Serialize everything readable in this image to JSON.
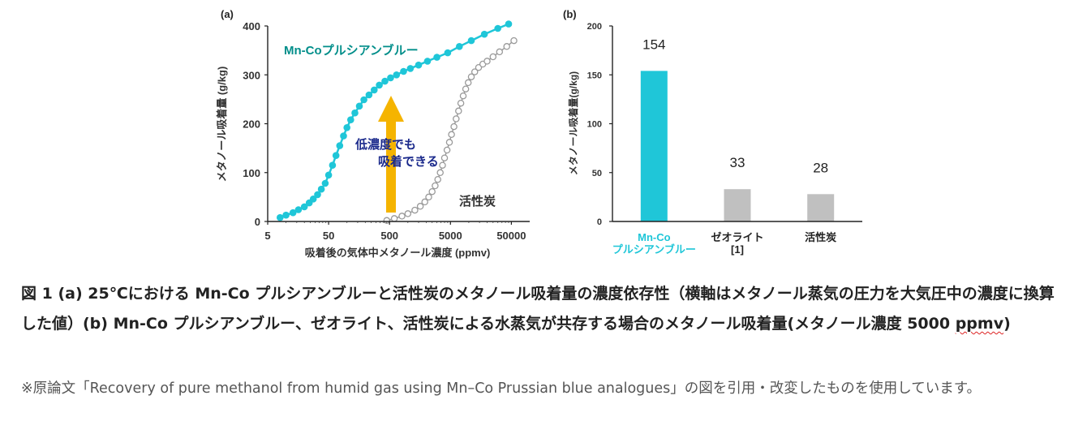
{
  "chart_data": [
    {
      "type": "line",
      "panel_label": "(a)",
      "xlabel": "吸着後の気体中メタノール濃度 (ppmv)",
      "ylabel": "メタノール吸着量 (g/kg)",
      "x_scale": "log",
      "xlim": [
        5,
        100000
      ],
      "ylim": [
        0,
        400
      ],
      "x_ticks": [
        5,
        50,
        500,
        5000,
        50000
      ],
      "x_tick_labels": [
        "5",
        "50",
        "500",
        "5000",
        "50000"
      ],
      "y_ticks": [
        0,
        100,
        200,
        300,
        400
      ],
      "y_tick_labels": [
        "0",
        "100",
        "200",
        "300",
        "400"
      ],
      "series": [
        {
          "name": "Mn-Coプルシアンブルー",
          "color": "#1fc6d8",
          "x": [
            8,
            10,
            13,
            16,
            20,
            24,
            28,
            33,
            38,
            44,
            50,
            58,
            66,
            76,
            88,
            100,
            115,
            135,
            160,
            190,
            230,
            280,
            340,
            420,
            520,
            650,
            850,
            1100,
            1500,
            2100,
            3000,
            4500,
            7000,
            11000,
            18000,
            30000,
            45000
          ],
          "y": [
            8,
            13,
            18,
            24,
            30,
            38,
            46,
            55,
            66,
            78,
            95,
            115,
            135,
            155,
            175,
            192,
            208,
            222,
            236,
            249,
            259,
            269,
            279,
            287,
            294,
            300,
            307,
            313,
            320,
            328,
            336,
            345,
            358,
            370,
            383,
            395,
            404
          ]
        },
        {
          "name": "活性炭",
          "color": "#9a9a9a",
          "x": [
            450,
            600,
            800,
            1000,
            1300,
            1600,
            1900,
            2200,
            2500,
            2800,
            3100,
            3400,
            3700,
            4000,
            4400,
            4800,
            5200,
            5700,
            6200,
            6800,
            7400,
            8100,
            8900,
            9800,
            11000,
            12500,
            14500,
            17000,
            20000,
            25000,
            32000,
            42000,
            55000
          ],
          "y": [
            2,
            6,
            11,
            16,
            23,
            31,
            40,
            50,
            61,
            73,
            86,
            100,
            115,
            130,
            146,
            162,
            178,
            194,
            210,
            226,
            242,
            257,
            271,
            284,
            296,
            306,
            315,
            322,
            328,
            337,
            347,
            358,
            370
          ]
        }
      ],
      "annotations": [
        "Mn-Coプルシアンブルー",
        "活性炭",
        "低濃度でも",
        "吸着できる"
      ]
    },
    {
      "type": "bar",
      "panel_label": "(b)",
      "ylabel": "メタノール吸着量(g/kg)",
      "ylim": [
        0,
        200
      ],
      "y_ticks": [
        0,
        50,
        100,
        150,
        200
      ],
      "y_tick_labels": [
        "0",
        "50",
        "100",
        "150",
        "200"
      ],
      "categories": [
        {
          "lines": [
            "Mn-Co",
            "プルシアンブルー"
          ],
          "color": "#1fc6d8"
        },
        {
          "lines": [
            "ゼオライト",
            "[1]"
          ],
          "color": "#222222"
        },
        {
          "lines": [
            "活性炭"
          ],
          "color": "#222222"
        }
      ],
      "values": [
        154,
        33,
        28
      ],
      "value_labels": [
        "154",
        "33",
        "28"
      ],
      "bar_colors": [
        "#1fc6d8",
        "#c0c0c0",
        "#c0c0c0"
      ]
    }
  ],
  "caption": {
    "main": "図 1 (a) 25℃における Mn-Co プルシアンブルーと活性炭のメタノール吸着量の濃度依存性（横軸はメタノール蒸気の圧力を大気圧中の濃度に換算した値）(b) Mn-Co プルシアンブルー、ゼオライト、活性炭による水蒸気が共存する場合のメタノール吸着量(メタノール濃度 5000 ",
    "unit": "ppmv",
    "end": ")"
  },
  "note": "※原論文「Recovery of pure methanol from humid gas using Mn–Co Prussian blue analogues」の図を引用・改変したものを使用しています。"
}
